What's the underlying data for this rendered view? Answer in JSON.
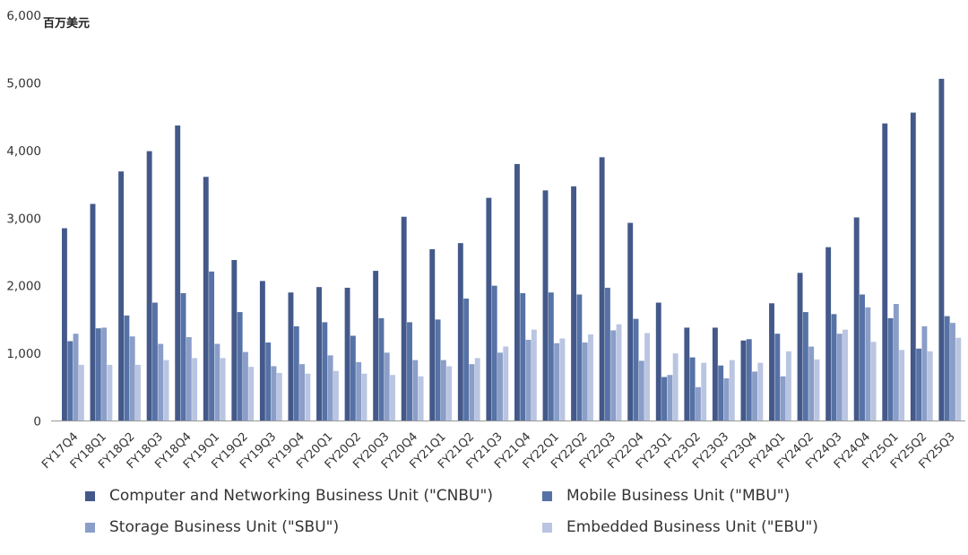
{
  "chart_data": {
    "type": "bar",
    "unit_label": "百万美元",
    "ylim": [
      0,
      6000
    ],
    "yticks": [
      "0",
      "1,000",
      "2,000",
      "3,000",
      "4,000",
      "5,000",
      "6,000"
    ],
    "grid": false,
    "legend_position": "bottom",
    "categories": [
      "FY17Q4",
      "FY18Q1",
      "FY18Q2",
      "FY18Q3",
      "FY18Q4",
      "FY19Q1",
      "FY19Q2",
      "FY19Q3",
      "FY19Q4",
      "FY20Q1",
      "FY20Q2",
      "FY20Q3",
      "FY20Q4",
      "FY21Q1",
      "FY21Q2",
      "FY21Q3",
      "FY21Q4",
      "FY22Q1",
      "FY22Q2",
      "FY22Q3",
      "FY22Q4",
      "FY23Q1",
      "FY23Q2",
      "FY23Q3",
      "FY23Q4",
      "FY24Q1",
      "FY24Q2",
      "FY24Q3",
      "FY24Q4",
      "FY25Q1",
      "FY25Q2",
      "FY25Q3"
    ],
    "series": [
      {
        "name": "Computer and Networking Business Unit (\"CNBU\")",
        "color": "#44598a",
        "values": [
          2850,
          3210,
          3690,
          3990,
          4370,
          3610,
          2380,
          2070,
          1900,
          1980,
          1970,
          2220,
          3020,
          2540,
          2630,
          3300,
          3800,
          3410,
          3470,
          3900,
          2930,
          1750,
          1380,
          1380,
          1190,
          1740,
          2190,
          2570,
          3010,
          4400,
          4560,
          5060
        ]
      },
      {
        "name": "Mobile Business Unit (\"MBU\")",
        "color": "#5672a6",
        "values": [
          1180,
          1370,
          1560,
          1750,
          1890,
          2210,
          1610,
          1160,
          1400,
          1460,
          1260,
          1520,
          1460,
          1500,
          1810,
          2000,
          1890,
          1900,
          1870,
          1970,
          1510,
          650,
          940,
          820,
          1210,
          1290,
          1610,
          1580,
          1870,
          1520,
          1070,
          1550
        ]
      },
      {
        "name": "Storage Business Unit (\"SBU\")",
        "color": "#8a9ec8",
        "values": [
          1290,
          1380,
          1250,
          1140,
          1240,
          1140,
          1020,
          810,
          840,
          970,
          870,
          1010,
          900,
          900,
          840,
          1010,
          1200,
          1150,
          1160,
          1340,
          890,
          680,
          500,
          630,
          730,
          660,
          1100,
          1290,
          1680,
          1730,
          1400,
          1450
        ]
      },
      {
        "name": "Embedded Business Unit (\"EBU\")",
        "color": "#b9c5e1",
        "values": [
          830,
          830,
          830,
          900,
          930,
          930,
          800,
          710,
          700,
          740,
          700,
          680,
          660,
          810,
          930,
          1100,
          1350,
          1220,
          1280,
          1430,
          1300,
          1000,
          860,
          900,
          860,
          1030,
          910,
          1350,
          1170,
          1050,
          1030,
          1230
        ]
      }
    ]
  }
}
